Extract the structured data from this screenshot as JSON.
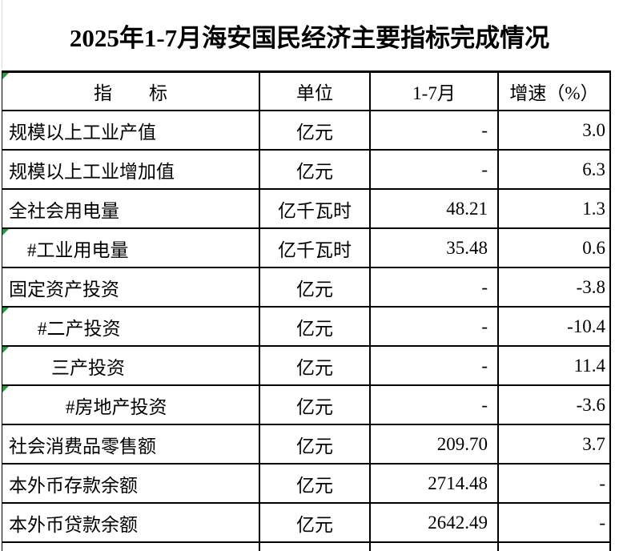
{
  "title": "2025年1-7月海安国民经济主要指标完成情况",
  "table": {
    "headers": [
      "指　　标",
      "单位",
      "1-7月",
      "增速（%）"
    ],
    "header_has_error_flag": true,
    "rows": [
      {
        "indicator": "规模以上工业产值",
        "unit": "亿元",
        "value": "-",
        "growth": "3.0",
        "indent": 0,
        "flag": false
      },
      {
        "indicator": "规模以上工业增加值",
        "unit": "亿元",
        "value": "-",
        "growth": "6.3",
        "indent": 0,
        "flag": false
      },
      {
        "indicator": "全社会用电量",
        "unit": "亿千瓦时",
        "value": "48.21",
        "growth": "1.3",
        "indent": 0,
        "flag": false
      },
      {
        "indicator": "#工业用电量",
        "unit": "亿千瓦时",
        "value": "35.48",
        "growth": "0.6",
        "indent": 1,
        "flag": true
      },
      {
        "indicator": "固定资产投资",
        "unit": "亿元",
        "value": "-",
        "growth": "-3.8",
        "indent": 0,
        "flag": false
      },
      {
        "indicator": "#二产投资",
        "unit": "亿元",
        "value": "-",
        "growth": "-10.4",
        "indent": 2,
        "flag": true
      },
      {
        "indicator": "三产投资",
        "unit": "亿元",
        "value": "-",
        "growth": "11.4",
        "indent": 3,
        "flag": true
      },
      {
        "indicator": "#房地产投资",
        "unit": "亿元",
        "value": "-",
        "growth": "-3.6",
        "indent": 4,
        "flag": true
      },
      {
        "indicator": "社会消费品零售额",
        "unit": "亿元",
        "value": "209.70",
        "growth": "3.7",
        "indent": 0,
        "flag": false
      },
      {
        "indicator": "本外币存款余额",
        "unit": "亿元",
        "value": "2714.48",
        "growth": "-",
        "indent": 0,
        "flag": false
      },
      {
        "indicator": "本外币贷款余额",
        "unit": "亿元",
        "value": "2642.49",
        "growth": "-",
        "indent": 0,
        "flag": false
      }
    ]
  },
  "colors": {
    "border": "#000000",
    "error_triangle_green": "#1f9d3f",
    "gridline_gray": "#d9d9d9",
    "background": "#ffffff",
    "text": "#000000"
  }
}
